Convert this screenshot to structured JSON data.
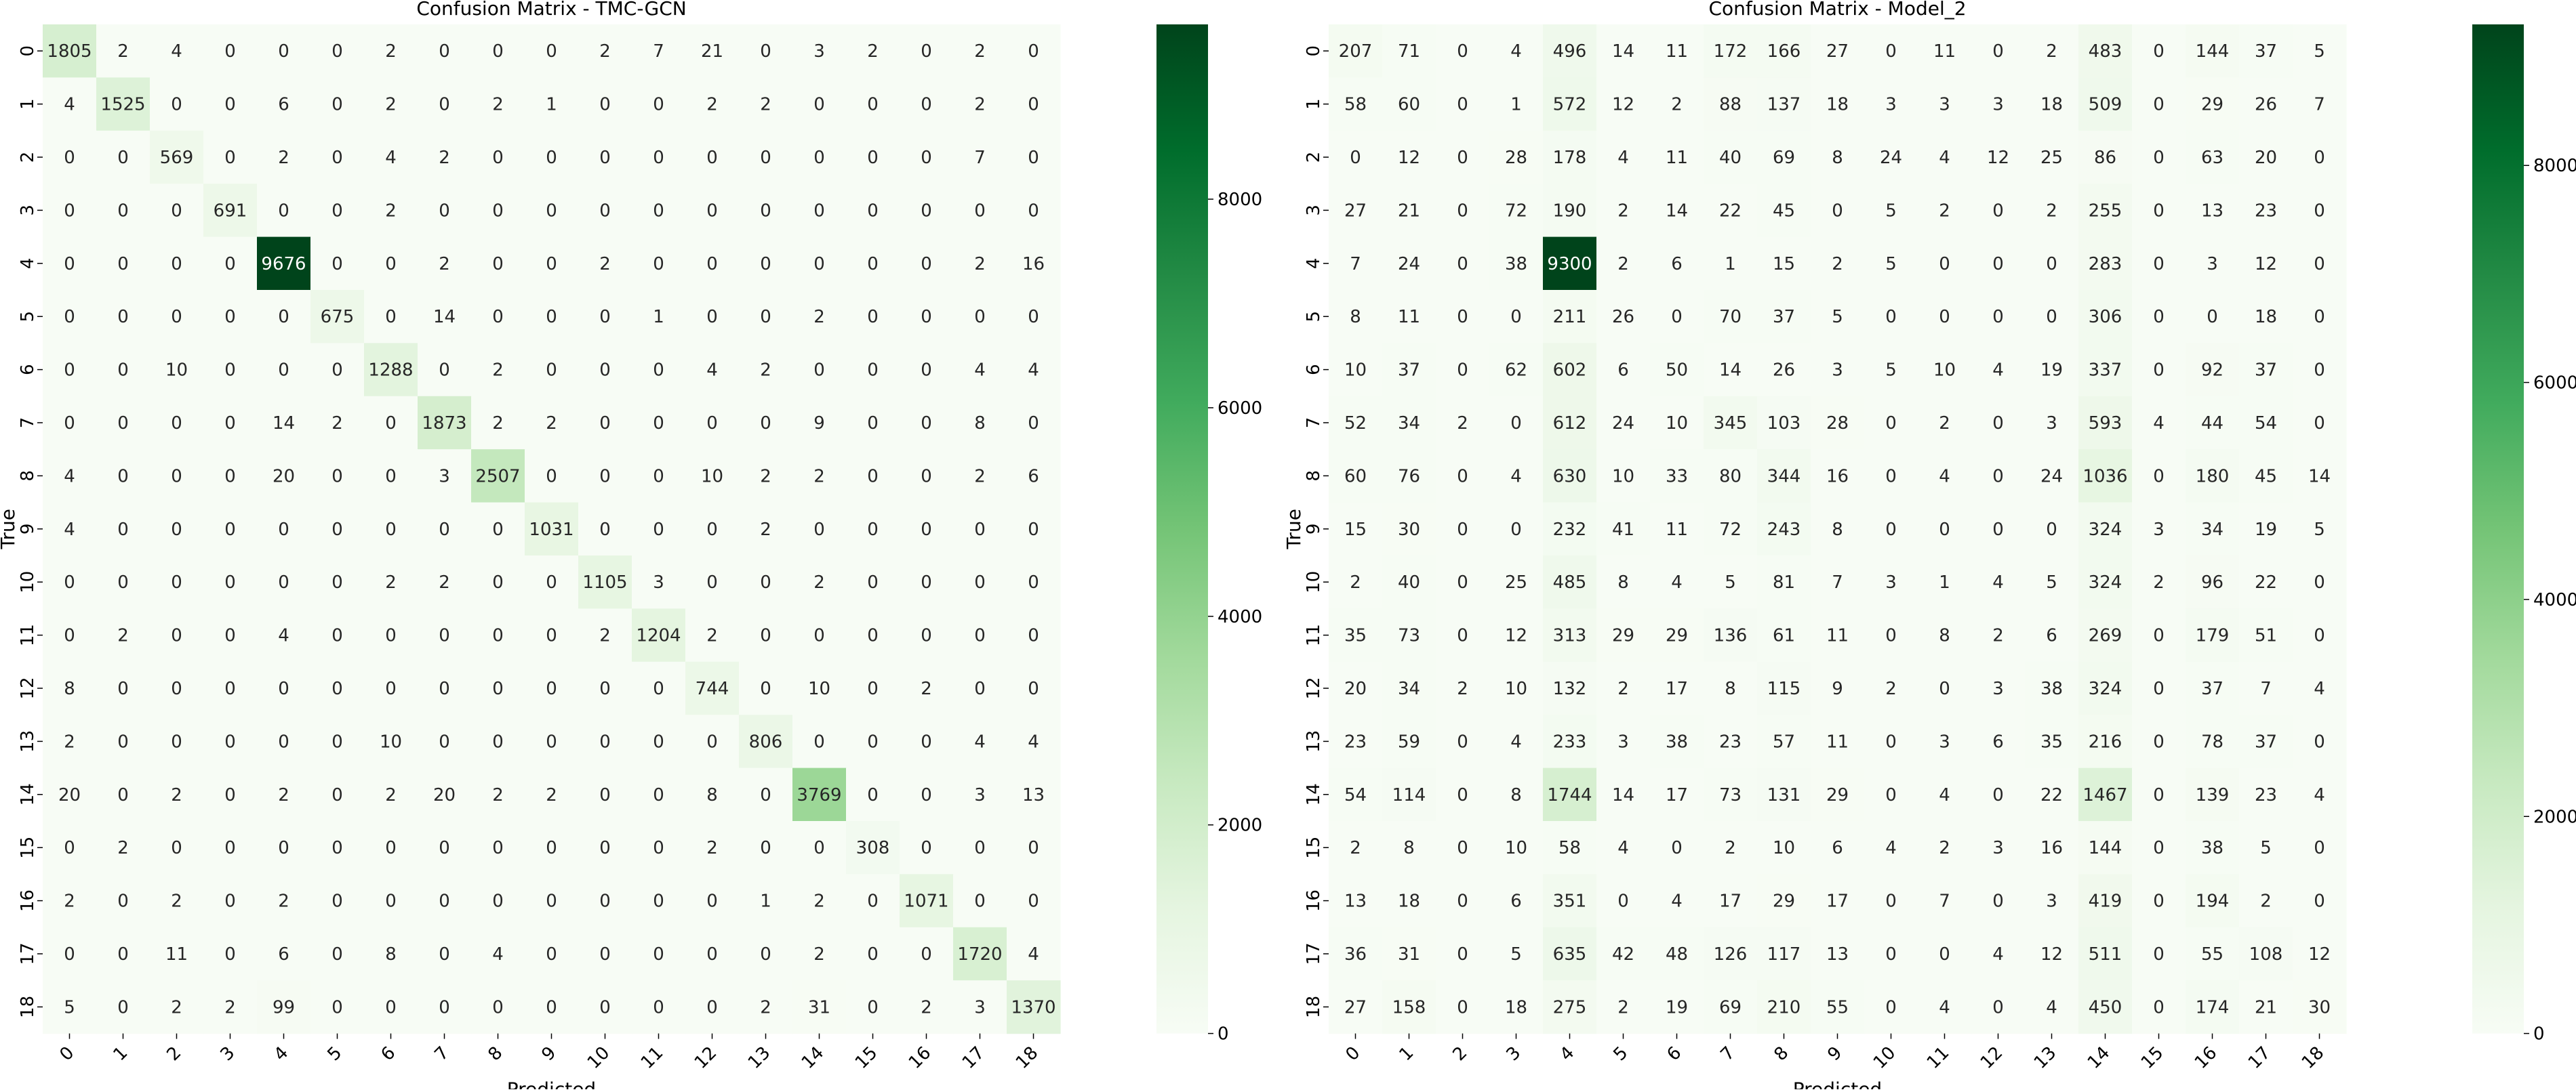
{
  "chart_data": [
    {
      "type": "heatmap",
      "title": "Confusion Matrix - TMC-GCN",
      "xlabel": "Predicted",
      "ylabel": "True",
      "x_categories": [
        "0",
        "1",
        "2",
        "3",
        "4",
        "5",
        "6",
        "7",
        "8",
        "9",
        "10",
        "11",
        "12",
        "13",
        "14",
        "15",
        "16",
        "17",
        "18"
      ],
      "y_categories": [
        "0",
        "1",
        "2",
        "3",
        "4",
        "5",
        "6",
        "7",
        "8",
        "9",
        "10",
        "11",
        "12",
        "13",
        "14",
        "15",
        "16",
        "17",
        "18"
      ],
      "colormap": "Greens",
      "vmin": 0,
      "vmax": 9676,
      "colorbar_ticks": [
        0,
        2000,
        4000,
        6000,
        8000
      ],
      "matrix": [
        [
          1805,
          2,
          4,
          0,
          0,
          0,
          2,
          0,
          0,
          0,
          2,
          7,
          21,
          0,
          3,
          2,
          0,
          2,
          0
        ],
        [
          4,
          1525,
          0,
          0,
          6,
          0,
          2,
          0,
          2,
          1,
          0,
          0,
          2,
          2,
          0,
          0,
          0,
          2,
          0
        ],
        [
          0,
          0,
          569,
          0,
          2,
          0,
          4,
          2,
          0,
          0,
          0,
          0,
          0,
          0,
          0,
          0,
          0,
          7,
          0
        ],
        [
          0,
          0,
          0,
          691,
          0,
          0,
          2,
          0,
          0,
          0,
          0,
          0,
          0,
          0,
          0,
          0,
          0,
          0,
          0
        ],
        [
          0,
          0,
          0,
          0,
          9676,
          0,
          0,
          2,
          0,
          0,
          2,
          0,
          0,
          0,
          0,
          0,
          0,
          2,
          16
        ],
        [
          0,
          0,
          0,
          0,
          0,
          675,
          0,
          14,
          0,
          0,
          0,
          1,
          0,
          0,
          2,
          0,
          0,
          0,
          0
        ],
        [
          0,
          0,
          10,
          0,
          0,
          0,
          1288,
          0,
          2,
          0,
          0,
          0,
          4,
          2,
          0,
          0,
          0,
          4,
          4
        ],
        [
          0,
          0,
          0,
          0,
          14,
          2,
          0,
          1873,
          2,
          2,
          0,
          0,
          0,
          0,
          9,
          0,
          0,
          8,
          0
        ],
        [
          4,
          0,
          0,
          0,
          20,
          0,
          0,
          3,
          2507,
          0,
          0,
          0,
          10,
          2,
          2,
          0,
          0,
          2,
          6
        ],
        [
          4,
          0,
          0,
          0,
          0,
          0,
          0,
          0,
          0,
          1031,
          0,
          0,
          0,
          2,
          0,
          0,
          0,
          0,
          0
        ],
        [
          0,
          0,
          0,
          0,
          0,
          0,
          2,
          2,
          0,
          0,
          1105,
          3,
          0,
          0,
          2,
          0,
          0,
          0,
          0
        ],
        [
          0,
          2,
          0,
          0,
          4,
          0,
          0,
          0,
          0,
          0,
          2,
          1204,
          2,
          0,
          0,
          0,
          0,
          0,
          0
        ],
        [
          8,
          0,
          0,
          0,
          0,
          0,
          0,
          0,
          0,
          0,
          0,
          0,
          744,
          0,
          10,
          0,
          2,
          0,
          0
        ],
        [
          2,
          0,
          0,
          0,
          0,
          0,
          10,
          0,
          0,
          0,
          0,
          0,
          0,
          806,
          0,
          0,
          0,
          4,
          4
        ],
        [
          20,
          0,
          2,
          0,
          2,
          0,
          2,
          20,
          2,
          2,
          0,
          0,
          8,
          0,
          3769,
          0,
          0,
          3,
          13
        ],
        [
          0,
          2,
          0,
          0,
          0,
          0,
          0,
          0,
          0,
          0,
          0,
          0,
          2,
          0,
          0,
          308,
          0,
          0,
          0
        ],
        [
          2,
          0,
          2,
          0,
          2,
          0,
          0,
          0,
          0,
          0,
          0,
          0,
          0,
          1,
          2,
          0,
          1071,
          0,
          0
        ],
        [
          0,
          0,
          11,
          0,
          6,
          0,
          8,
          0,
          4,
          0,
          0,
          0,
          0,
          0,
          2,
          0,
          0,
          1720,
          4
        ],
        [
          5,
          0,
          2,
          2,
          99,
          0,
          0,
          0,
          0,
          0,
          0,
          0,
          0,
          2,
          31,
          0,
          2,
          3,
          1370
        ]
      ]
    },
    {
      "type": "heatmap",
      "title": "Confusion Matrix - Model_2",
      "xlabel": "Predicted",
      "ylabel": "True",
      "x_categories": [
        "0",
        "1",
        "2",
        "3",
        "4",
        "5",
        "6",
        "7",
        "8",
        "9",
        "10",
        "11",
        "12",
        "13",
        "14",
        "15",
        "16",
        "17",
        "18"
      ],
      "y_categories": [
        "0",
        "1",
        "2",
        "3",
        "4",
        "5",
        "6",
        "7",
        "8",
        "9",
        "10",
        "11",
        "12",
        "13",
        "14",
        "15",
        "16",
        "17",
        "18"
      ],
      "colormap": "Greens",
      "vmin": 0,
      "vmax": 9300,
      "colorbar_ticks": [
        0,
        2000,
        4000,
        6000,
        8000
      ],
      "matrix": [
        [
          207,
          71,
          0,
          4,
          496,
          14,
          11,
          172,
          166,
          27,
          0,
          11,
          0,
          2,
          483,
          0,
          144,
          37,
          5
        ],
        [
          58,
          60,
          0,
          1,
          572,
          12,
          2,
          88,
          137,
          18,
          3,
          3,
          3,
          18,
          509,
          0,
          29,
          26,
          7
        ],
        [
          0,
          12,
          0,
          28,
          178,
          4,
          11,
          40,
          69,
          8,
          24,
          4,
          12,
          25,
          86,
          0,
          63,
          20,
          0
        ],
        [
          27,
          21,
          0,
          72,
          190,
          2,
          14,
          22,
          45,
          0,
          5,
          2,
          0,
          2,
          255,
          0,
          13,
          23,
          0
        ],
        [
          7,
          24,
          0,
          38,
          9300,
          2,
          6,
          1,
          15,
          2,
          5,
          0,
          0,
          0,
          283,
          0,
          3,
          12,
          0
        ],
        [
          8,
          11,
          0,
          0,
          211,
          26,
          0,
          70,
          37,
          5,
          0,
          0,
          0,
          0,
          306,
          0,
          0,
          18,
          0
        ],
        [
          10,
          37,
          0,
          62,
          602,
          6,
          50,
          14,
          26,
          3,
          5,
          10,
          4,
          19,
          337,
          0,
          92,
          37,
          0
        ],
        [
          52,
          34,
          2,
          0,
          612,
          24,
          10,
          345,
          103,
          28,
          0,
          2,
          0,
          3,
          593,
          4,
          44,
          54,
          0
        ],
        [
          60,
          76,
          0,
          4,
          630,
          10,
          33,
          80,
          344,
          16,
          0,
          4,
          0,
          24,
          1036,
          0,
          180,
          45,
          14
        ],
        [
          15,
          30,
          0,
          0,
          232,
          41,
          11,
          72,
          243,
          8,
          0,
          0,
          0,
          0,
          324,
          3,
          34,
          19,
          5
        ],
        [
          2,
          40,
          0,
          25,
          485,
          8,
          4,
          5,
          81,
          7,
          3,
          1,
          4,
          5,
          324,
          2,
          96,
          22,
          0
        ],
        [
          35,
          73,
          0,
          12,
          313,
          29,
          29,
          136,
          61,
          11,
          0,
          8,
          2,
          6,
          269,
          0,
          179,
          51,
          0
        ],
        [
          20,
          34,
          2,
          10,
          132,
          2,
          17,
          8,
          115,
          9,
          2,
          0,
          3,
          38,
          324,
          0,
          37,
          7,
          4
        ],
        [
          23,
          59,
          0,
          4,
          233,
          3,
          38,
          23,
          57,
          11,
          0,
          3,
          6,
          35,
          216,
          0,
          78,
          37,
          0
        ],
        [
          54,
          114,
          0,
          8,
          1744,
          14,
          17,
          73,
          131,
          29,
          0,
          4,
          0,
          22,
          1467,
          0,
          139,
          23,
          4
        ],
        [
          2,
          8,
          0,
          10,
          58,
          4,
          0,
          2,
          10,
          6,
          4,
          2,
          3,
          16,
          144,
          0,
          38,
          5,
          0
        ],
        [
          13,
          18,
          0,
          6,
          351,
          0,
          4,
          17,
          29,
          17,
          0,
          7,
          0,
          3,
          419,
          0,
          194,
          2,
          0
        ],
        [
          36,
          31,
          0,
          5,
          635,
          42,
          48,
          126,
          117,
          13,
          0,
          0,
          4,
          12,
          511,
          0,
          55,
          108,
          12
        ],
        [
          27,
          158,
          0,
          18,
          275,
          2,
          19,
          69,
          210,
          55,
          0,
          4,
          0,
          4,
          450,
          0,
          174,
          21,
          30
        ]
      ]
    }
  ]
}
